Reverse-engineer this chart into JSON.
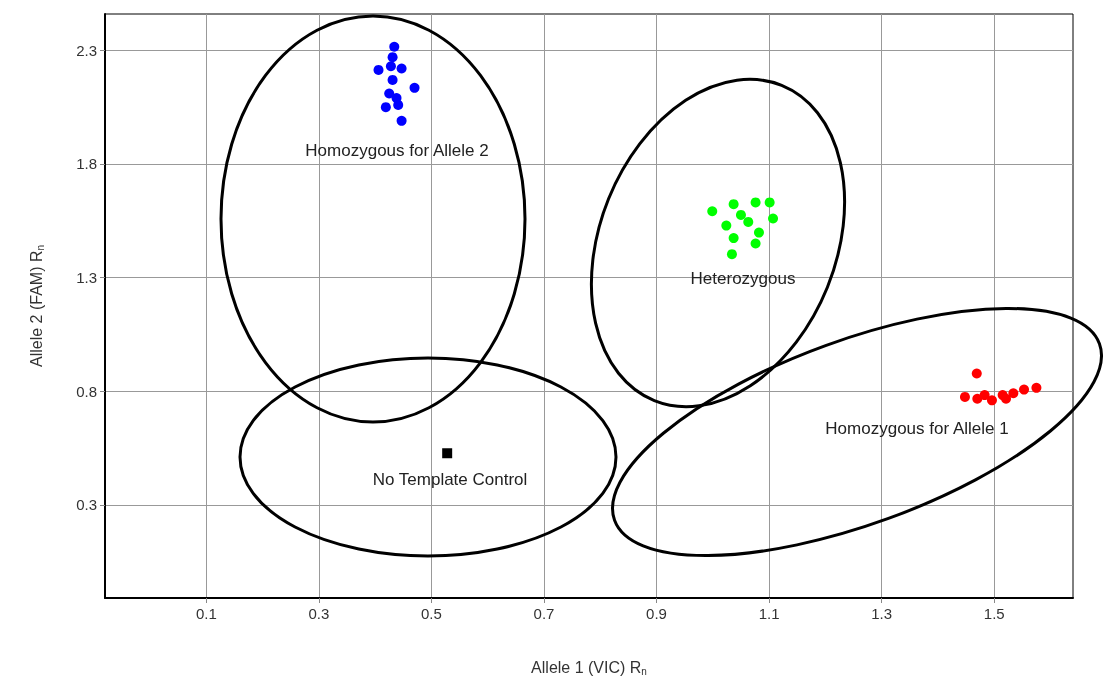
{
  "chart_data": {
    "type": "scatter",
    "xlabel": "Allele 1 (VIC) R$_{n}$",
    "ylabel": "Allele 2 (FAM) R$_{n}$",
    "xlim": [
      -0.08,
      1.64
    ],
    "xticks": [
      0.1,
      0.3,
      0.5,
      0.7,
      0.9,
      1.1,
      1.3,
      1.5
    ],
    "ylim": [
      -0.11,
      2.46
    ],
    "yticks": [
      0.3,
      0.8,
      1.3,
      1.8,
      2.3
    ],
    "grid": true,
    "marker": "circle",
    "series": [
      {
        "color": "#0000ff",
        "x": [
          0.434,
          0.406,
          0.428,
          0.447,
          0.431,
          0.47,
          0.425,
          0.438,
          0.419,
          0.441,
          0.447,
          0.431
        ],
        "values": [
          2.316,
          2.214,
          2.23,
          2.22,
          2.17,
          2.135,
          2.11,
          2.09,
          2.05,
          2.06,
          1.99,
          2.27
        ]
      },
      {
        "color": "#00ff00",
        "x": [
          0.999,
          1.037,
          1.076,
          1.101,
          1.107,
          1.024,
          1.063,
          1.082,
          1.037,
          1.076,
          1.034,
          1.05
        ],
        "values": [
          1.592,
          1.623,
          1.631,
          1.631,
          1.56,
          1.529,
          1.545,
          1.498,
          1.474,
          1.45,
          1.403,
          1.576
        ]
      },
      {
        "color": "#ff0000",
        "x": [
          1.469,
          1.448,
          1.47,
          1.496,
          1.515,
          1.534,
          1.553,
          1.575,
          1.521,
          1.483
        ],
        "values": [
          0.878,
          0.775,
          0.767,
          0.76,
          0.783,
          0.791,
          0.807,
          0.815,
          0.767,
          0.783
        ]
      },
      {
        "color": "#000000",
        "marker": "square",
        "x": [
          0.528
        ],
        "values": [
          0.527
        ]
      }
    ],
    "annotations": [
      "Homozygous for Allele 2",
      "Heterozygous",
      "Homozygous for Allele 1",
      "No Template Control"
    ]
  }
}
